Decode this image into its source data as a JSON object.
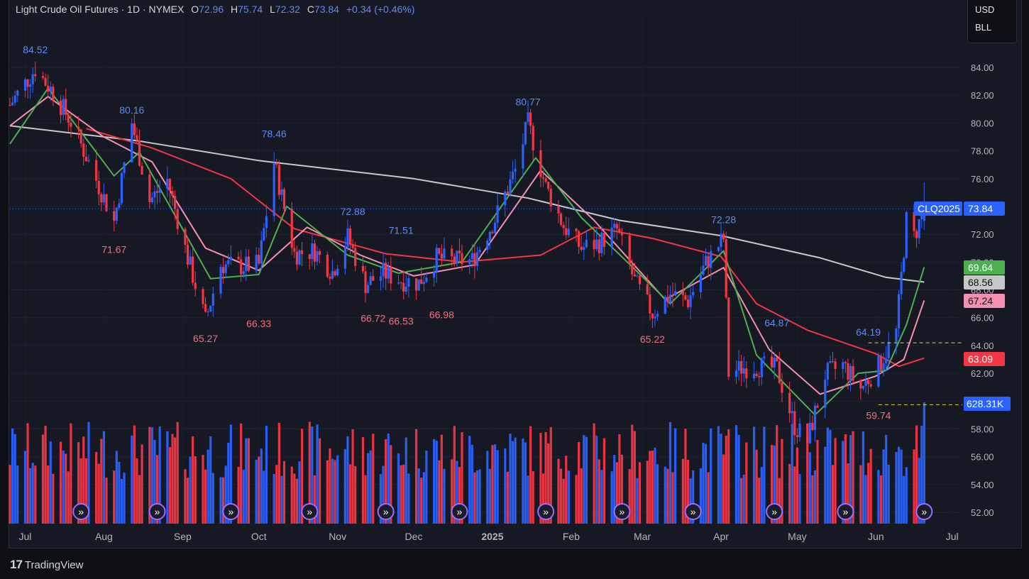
{
  "header": {
    "symbol": "Light Crude Oil Futures · 1D · NYMEX",
    "o_label": "O",
    "o": "72.96",
    "h_label": "H",
    "h": "75.74",
    "l_label": "L",
    "l": "72.32",
    "c_label": "C",
    "c": "73.84",
    "change": "+0.34 (+0.46%)"
  },
  "currency_panel": {
    "currency": "USD",
    "unit": "BLL"
  },
  "footer": {
    "brand": "TradingView",
    "logo": "17"
  },
  "colors": {
    "up": "#2962ff",
    "down": "#f23645",
    "ma_green": "#4caf50",
    "ma_pink": "#f48fb1",
    "ma_red": "#f23645",
    "ma_gray": "#c8c8c8",
    "bg": "#161823"
  },
  "chart_data": {
    "type": "candlestick",
    "y_ticks": [
      "52.00",
      "54.00",
      "56.00",
      "58.00",
      "60.00",
      "62.00",
      "64.00",
      "66.00",
      "68.00",
      "70.00",
      "72.00",
      "74.00",
      "76.00",
      "78.00",
      "80.00",
      "82.00",
      "84.00"
    ],
    "ylim": [
      51.5,
      85.5
    ],
    "x_months": [
      "Jul",
      "Aug",
      "Sep",
      "Oct",
      "Nov",
      "Dec",
      "2025",
      "Feb",
      "Mar",
      "Apr",
      "May",
      "Jun",
      "Jul"
    ],
    "x_range": [
      "2024-06-25",
      "2025-07-05"
    ],
    "close_points": [
      [
        "2024-06-25",
        81.3
      ],
      [
        "2024-07-05",
        83.9
      ],
      [
        "2024-07-12",
        82.2
      ],
      [
        "2024-07-19",
        80.1
      ],
      [
        "2024-07-26",
        77.2
      ],
      [
        "2024-08-05",
        72.9
      ],
      [
        "2024-08-12",
        80.0
      ],
      [
        "2024-08-19",
        74.4
      ],
      [
        "2024-08-26",
        75.9
      ],
      [
        "2024-09-03",
        70.3
      ],
      [
        "2024-09-10",
        65.8
      ],
      [
        "2024-09-16",
        69.8
      ],
      [
        "2024-09-25",
        69.7
      ],
      [
        "2024-10-01",
        69.8
      ],
      [
        "2024-10-07",
        77.2
      ],
      [
        "2024-10-15",
        70.6
      ],
      [
        "2024-10-23",
        70.8
      ],
      [
        "2024-10-30",
        69.3
      ],
      [
        "2024-11-05",
        71.8
      ],
      [
        "2024-11-12",
        68.4
      ],
      [
        "2024-11-19",
        69.2
      ],
      [
        "2024-11-26",
        68.7
      ],
      [
        "2024-12-03",
        68.5
      ],
      [
        "2024-12-10",
        70.3
      ],
      [
        "2024-12-17",
        70.1
      ],
      [
        "2024-12-24",
        70.1
      ],
      [
        "2025-01-02",
        73.1
      ],
      [
        "2025-01-10",
        76.6
      ],
      [
        "2025-01-15",
        80.0
      ],
      [
        "2025-01-22",
        75.4
      ],
      [
        "2025-01-29",
        72.6
      ],
      [
        "2025-02-05",
        71.0
      ],
      [
        "2025-02-12",
        71.4
      ],
      [
        "2025-02-19",
        72.3
      ],
      [
        "2025-02-26",
        68.6
      ],
      [
        "2025-03-05",
        66.3
      ],
      [
        "2025-03-12",
        67.7
      ],
      [
        "2025-03-19",
        67.2
      ],
      [
        "2025-03-26",
        69.9
      ],
      [
        "2025-04-02",
        71.7
      ],
      [
        "2025-04-04",
        61.99
      ],
      [
        "2025-04-09",
        62.4
      ],
      [
        "2025-04-16",
        62.5
      ],
      [
        "2025-04-23",
        62.3
      ],
      [
        "2025-04-30",
        58.2
      ],
      [
        "2025-05-05",
        57.1
      ],
      [
        "2025-05-12",
        61.9
      ],
      [
        "2025-05-19",
        62.6
      ],
      [
        "2025-05-26",
        60.9
      ],
      [
        "2025-06-02",
        62.5
      ],
      [
        "2025-06-09",
        64.98
      ],
      [
        "2025-06-13",
        72.98
      ],
      [
        "2025-06-16",
        71.8
      ],
      [
        "2025-06-20",
        73.84
      ]
    ],
    "volume_unit": "K",
    "last_volume": "628.31K",
    "high_labels": [
      {
        "date": "2024-07-05",
        "value": "84.52"
      },
      {
        "date": "2024-08-12",
        "value": "80.16"
      },
      {
        "date": "2024-10-07",
        "value": "78.46"
      },
      {
        "date": "2024-11-07",
        "value": "72.88"
      },
      {
        "date": "2024-11-26",
        "value": "71.51"
      },
      {
        "date": "2025-01-15",
        "value": "80.77"
      },
      {
        "date": "2025-04-02",
        "value": "72.28"
      },
      {
        "date": "2025-04-23",
        "value": "64.87"
      },
      {
        "date": "2025-05-29",
        "value": "64.19"
      }
    ],
    "low_labels": [
      {
        "date": "2024-08-05",
        "value": "71.67"
      },
      {
        "date": "2024-09-10",
        "value": "65.27"
      },
      {
        "date": "2024-10-01",
        "value": "66.33"
      },
      {
        "date": "2024-11-15",
        "value": "66.72"
      },
      {
        "date": "2024-11-26",
        "value": "66.53"
      },
      {
        "date": "2024-12-12",
        "value": "66.98"
      },
      {
        "date": "2025-03-05",
        "value": "65.22"
      },
      {
        "date": "2025-06-02",
        "value": "59.74"
      }
    ],
    "series": [
      {
        "name": "CLQ2025",
        "value": "73.84",
        "color": "#2962ff"
      },
      {
        "value": "69.64",
        "color": "#4caf50"
      },
      {
        "value": "68.56",
        "color": "#c8c8c8"
      },
      {
        "value": "67.24",
        "color": "#f48fb1"
      },
      {
        "value": "63.09",
        "color": "#f23645"
      }
    ],
    "ma_gray_points": [
      [
        "2024-06-25",
        79.8
      ],
      [
        "2024-08-15",
        78.7
      ],
      [
        "2024-10-01",
        77.3
      ],
      [
        "2024-12-01",
        76.0
      ],
      [
        "2025-01-15",
        74.6
      ],
      [
        "2025-02-20",
        73.0
      ],
      [
        "2025-04-01",
        71.9
      ],
      [
        "2025-05-10",
        70.3
      ],
      [
        "2025-06-05",
        68.9
      ],
      [
        "2025-06-20",
        68.56
      ]
    ],
    "ma_red_points": [
      [
        "2024-07-25",
        79.6
      ],
      [
        "2024-08-20",
        78.2
      ],
      [
        "2024-09-20",
        76.0
      ],
      [
        "2024-10-15",
        72.4
      ],
      [
        "2024-11-20",
        70.6
      ],
      [
        "2024-12-20",
        70.0
      ],
      [
        "2025-01-20",
        70.5
      ],
      [
        "2025-02-10",
        72.5
      ],
      [
        "2025-03-05",
        71.7
      ],
      [
        "2025-04-01",
        70.4
      ],
      [
        "2025-04-15",
        67.0
      ],
      [
        "2025-05-05",
        65.1
      ],
      [
        "2025-06-01",
        63.4
      ],
      [
        "2025-06-10",
        62.5
      ],
      [
        "2025-06-20",
        63.09
      ]
    ],
    "ma_pink_points": [
      [
        "2024-06-25",
        79.8
      ],
      [
        "2024-07-10",
        81.9
      ],
      [
        "2024-08-01",
        79.0
      ],
      [
        "2024-08-20",
        77.2
      ],
      [
        "2024-09-10",
        71.0
      ],
      [
        "2024-10-01",
        69.4
      ],
      [
        "2024-10-20",
        72.5
      ],
      [
        "2024-11-10",
        70.5
      ],
      [
        "2024-12-01",
        69.0
      ],
      [
        "2024-12-25",
        69.8
      ],
      [
        "2025-01-20",
        76.6
      ],
      [
        "2025-02-10",
        73.0
      ],
      [
        "2025-03-10",
        67.3
      ],
      [
        "2025-04-02",
        69.6
      ],
      [
        "2025-04-20",
        63.7
      ],
      [
        "2025-05-10",
        60.5
      ],
      [
        "2025-06-01",
        61.8
      ],
      [
        "2025-06-12",
        63.0
      ],
      [
        "2025-06-20",
        67.24
      ]
    ],
    "ma_green_points": [
      [
        "2024-06-25",
        78.5
      ],
      [
        "2024-07-10",
        82.5
      ],
      [
        "2024-08-05",
        76.2
      ],
      [
        "2024-08-15",
        77.9
      ],
      [
        "2024-09-12",
        68.8
      ],
      [
        "2024-10-01",
        69.1
      ],
      [
        "2024-10-12",
        74.0
      ],
      [
        "2024-11-05",
        70.5
      ],
      [
        "2024-11-25",
        69.2
      ],
      [
        "2024-12-20",
        70.0
      ],
      [
        "2025-01-18",
        77.5
      ],
      [
        "2025-02-05",
        73.2
      ],
      [
        "2025-03-12",
        67.0
      ],
      [
        "2025-04-02",
        70.8
      ],
      [
        "2025-04-15",
        63.3
      ],
      [
        "2025-05-08",
        59.0
      ],
      [
        "2025-05-25",
        62.0
      ],
      [
        "2025-06-05",
        62.2
      ],
      [
        "2025-06-13",
        65.5
      ],
      [
        "2025-06-20",
        69.64
      ]
    ],
    "dashed_levels": [
      64.19,
      59.74
    ],
    "last_price": 73.84
  }
}
